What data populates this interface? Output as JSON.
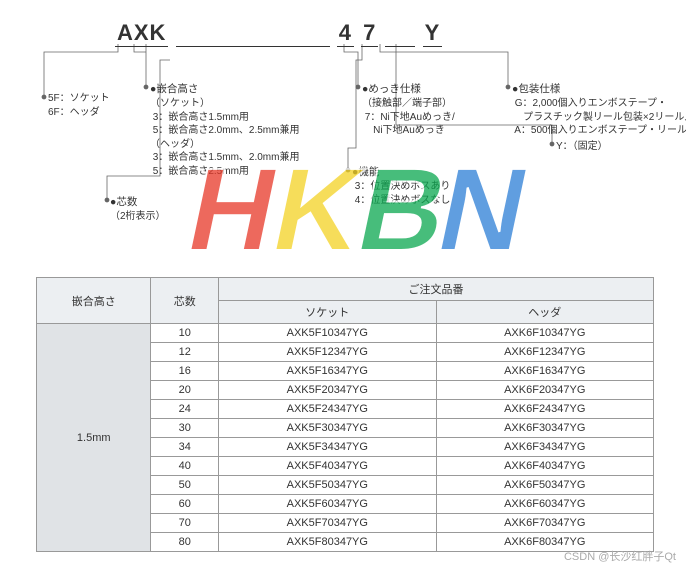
{
  "partNumber": {
    "p1": "AXK",
    "p2": "4",
    "p3": "7",
    "p4": "Y"
  },
  "anno": {
    "a1": {
      "title": "",
      "lines": [
        "5F：ソケット",
        "6F：ヘッダ"
      ]
    },
    "a2": {
      "title": "●嵌合高さ",
      "lines": [
        "（ソケット）",
        " 3：嵌合高さ1.5mm用",
        " 5：嵌合高さ2.0mm、2.5mm兼用",
        "（ヘッダ）",
        " 3：嵌合高さ1.5mm、2.0mm兼用",
        " 5：嵌合高さ2.5mm用"
      ]
    },
    "a3": {
      "title": "●芯数",
      "lines": [
        "（2桁表示）"
      ]
    },
    "a4": {
      "title": "●めっき仕様",
      "lines": [
        "（接触部／端子部）",
        " 7：Ni下地Auめっき/",
        "    Ni下地Auめっき"
      ]
    },
    "a5": {
      "title": "●機能",
      "lines": [
        " 3：位置決めボスあり",
        " 4：位置決めボスなし"
      ]
    },
    "a6": {
      "title": "●包装仕様",
      "lines": [
        " G：2,000個入りエンボステープ・",
        "    プラスチック製リール包装×2リール入り",
        " A：500個入りエンボステープ・リールなし"
      ]
    },
    "a7": {
      "title": "",
      "lines": [
        "Y：（固定）"
      ]
    }
  },
  "table": {
    "headers": {
      "h1": "嵌合高さ",
      "h2": "芯数",
      "h3": "ご注文品番",
      "h3a": "ソケット",
      "h3b": "ヘッダ"
    },
    "height": "1.5mm",
    "rows": [
      {
        "pins": "10",
        "s": "AXK5F10347YG",
        "h": "AXK6F10347YG"
      },
      {
        "pins": "12",
        "s": "AXK5F12347YG",
        "h": "AXK6F12347YG"
      },
      {
        "pins": "16",
        "s": "AXK5F16347YG",
        "h": "AXK6F16347YG"
      },
      {
        "pins": "20",
        "s": "AXK5F20347YG",
        "h": "AXK6F20347YG"
      },
      {
        "pins": "24",
        "s": "AXK5F24347YG",
        "h": "AXK6F24347YG"
      },
      {
        "pins": "30",
        "s": "AXK5F30347YG",
        "h": "AXK6F30347YG"
      },
      {
        "pins": "34",
        "s": "AXK5F34347YG",
        "h": "AXK6F34347YG"
      },
      {
        "pins": "40",
        "s": "AXK5F40347YG",
        "h": "AXK6F40347YG"
      },
      {
        "pins": "50",
        "s": "AXK5F50347YG",
        "h": "AXK6F50347YG"
      },
      {
        "pins": "60",
        "s": "AXK5F60347YG",
        "h": "AXK6F60347YG"
      },
      {
        "pins": "70",
        "s": "AXK5F70347YG",
        "h": "AXK6F70347YG"
      },
      {
        "pins": "80",
        "s": "AXK5F80347YG",
        "h": "AXK6F80347YG"
      }
    ]
  },
  "watermark": {
    "text": "HKBN",
    "colors": [
      "#e73828",
      "#f4d223",
      "#0aa84f",
      "#2c7ed6",
      "#e84aa8"
    ]
  },
  "credit": "CSDN @长沙红胖子Qt",
  "style": {
    "connectorColor": "#666",
    "tableBorder": "#999",
    "headerBg": "#eceff2",
    "heightBg": "#e0e3e6"
  }
}
